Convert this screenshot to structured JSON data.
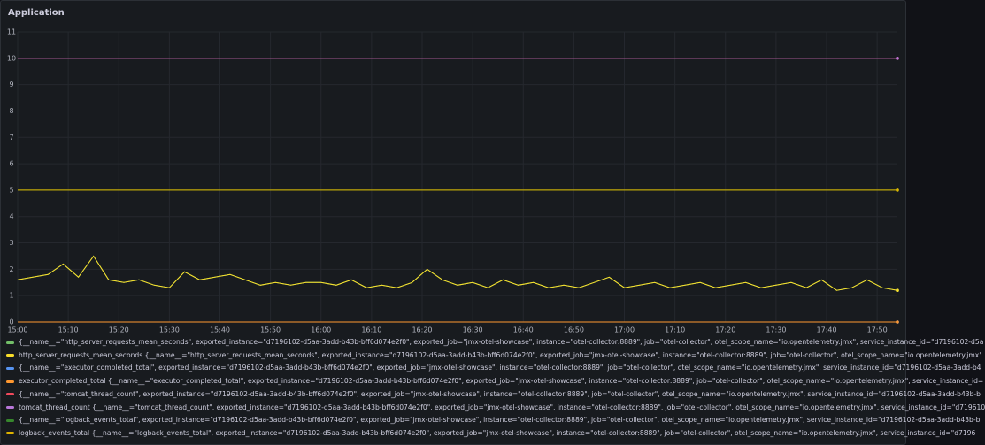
{
  "chart_data": {
    "type": "line",
    "title": "Application",
    "x": [
      "15:00",
      "15:03",
      "15:06",
      "15:09",
      "15:12",
      "15:15",
      "15:18",
      "15:21",
      "15:24",
      "15:27",
      "15:30",
      "15:33",
      "15:36",
      "15:39",
      "15:42",
      "15:45",
      "15:48",
      "15:51",
      "15:54",
      "15:57",
      "16:00",
      "16:03",
      "16:06",
      "16:09",
      "16:12",
      "16:15",
      "16:18",
      "16:21",
      "16:24",
      "16:27",
      "16:30",
      "16:33",
      "16:36",
      "16:39",
      "16:42",
      "16:45",
      "16:48",
      "16:51",
      "16:54",
      "16:57",
      "17:00",
      "17:03",
      "17:06",
      "17:09",
      "17:12",
      "17:15",
      "17:18",
      "17:21",
      "17:24",
      "17:27",
      "17:30",
      "17:33",
      "17:36",
      "17:39",
      "17:42",
      "17:45",
      "17:48",
      "17:51",
      "17:54"
    ],
    "xlim": [
      "15:00",
      "17:54"
    ],
    "xticks": [
      "15:00",
      "15:10",
      "15:20",
      "15:30",
      "15:40",
      "15:50",
      "16:00",
      "16:10",
      "16:20",
      "16:30",
      "16:40",
      "16:50",
      "17:00",
      "17:10",
      "17:20",
      "17:30",
      "17:40",
      "17:50"
    ],
    "ylim": [
      0,
      11
    ],
    "yticks": [
      0,
      1,
      2,
      3,
      4,
      5,
      6,
      7,
      8,
      9,
      10,
      11
    ],
    "grid": true,
    "series": [
      {
        "name": "{__name__=\"http_server_requests_mean_seconds\", exported_instance=\"d7196102-d5aa-3add-b43b-bff6d074e2f0\", exported_job=\"jmx-otel-showcase\", instance=\"otel-collector:8889\", job=\"otel-collector\", otel_scope_name=\"io.opentelemetry.jmx\", service_instance_id=\"d7196102-d5a",
        "color": "#73bf69",
        "values": [
          1.6,
          1.7,
          1.8,
          2.2,
          1.7,
          2.5,
          1.6,
          1.5,
          1.6,
          1.4,
          1.3,
          1.9,
          1.6,
          1.7,
          1.8,
          1.6,
          1.4,
          1.5,
          1.4,
          1.5,
          1.5,
          1.4,
          1.6,
          1.3,
          1.4,
          1.3,
          1.5,
          2.0,
          1.6,
          1.4,
          1.5,
          1.3,
          1.6,
          1.4,
          1.5,
          1.3,
          1.4,
          1.3,
          1.5,
          1.7,
          1.3,
          1.4,
          1.5,
          1.3,
          1.4,
          1.5,
          1.3,
          1.4,
          1.5,
          1.3,
          1.4,
          1.5,
          1.3,
          1.6,
          1.2,
          1.3,
          1.6,
          1.3,
          1.2
        ]
      },
      {
        "name": "http_server_requests_mean_seconds {__name__=\"http_server_requests_mean_seconds\", exported_instance=\"d7196102-d5aa-3add-b43b-bff6d074e2f0\", exported_job=\"jmx-otel-showcase\", instance=\"otel-collector:8889\", job=\"otel-collector\", otel_scope_name=\"io.opentelemetry.jmx'",
        "color": "#fade2a",
        "values": [
          1.6,
          1.7,
          1.8,
          2.2,
          1.7,
          2.5,
          1.6,
          1.5,
          1.6,
          1.4,
          1.3,
          1.9,
          1.6,
          1.7,
          1.8,
          1.6,
          1.4,
          1.5,
          1.4,
          1.5,
          1.5,
          1.4,
          1.6,
          1.3,
          1.4,
          1.3,
          1.5,
          2.0,
          1.6,
          1.4,
          1.5,
          1.3,
          1.6,
          1.4,
          1.5,
          1.3,
          1.4,
          1.3,
          1.5,
          1.7,
          1.3,
          1.4,
          1.5,
          1.3,
          1.4,
          1.5,
          1.3,
          1.4,
          1.5,
          1.3,
          1.4,
          1.5,
          1.3,
          1.6,
          1.2,
          1.3,
          1.6,
          1.3,
          1.2
        ]
      },
      {
        "name": "{__name__=\"executor_completed_total\", exported_instance=\"d7196102-d5aa-3add-b43b-bff6d074e2f0\", exported_job=\"jmx-otel-showcase\", instance=\"otel-collector:8889\", job=\"otel-collector\", otel_scope_name=\"io.opentelemetry.jmx\", service_instance_id=\"d7196102-d5aa-3add-b4",
        "color": "#5794f2",
        "values": [
          0,
          0,
          0,
          0,
          0,
          0,
          0,
          0,
          0,
          0,
          0,
          0,
          0,
          0,
          0,
          0,
          0,
          0,
          0,
          0,
          0,
          0,
          0,
          0,
          0,
          0,
          0,
          0,
          0,
          0,
          0,
          0,
          0,
          0,
          0,
          0,
          0,
          0,
          0,
          0,
          0,
          0,
          0,
          0,
          0,
          0,
          0,
          0,
          0,
          0,
          0,
          0,
          0,
          0,
          0,
          0,
          0,
          0,
          0
        ]
      },
      {
        "name": "executor_completed_total {__name__=\"executor_completed_total\", exported_instance=\"d7196102-d5aa-3add-b43b-bff6d074e2f0\", exported_job=\"jmx-otel-showcase\", instance=\"otel-collector:8889\", job=\"otel-collector\", otel_scope_name=\"io.opentelemetry.jmx\", service_instance_id=",
        "color": "#ff9830",
        "values": [
          0,
          0,
          0,
          0,
          0,
          0,
          0,
          0,
          0,
          0,
          0,
          0,
          0,
          0,
          0,
          0,
          0,
          0,
          0,
          0,
          0,
          0,
          0,
          0,
          0,
          0,
          0,
          0,
          0,
          0,
          0,
          0,
          0,
          0,
          0,
          0,
          0,
          0,
          0,
          0,
          0,
          0,
          0,
          0,
          0,
          0,
          0,
          0,
          0,
          0,
          0,
          0,
          0,
          0,
          0,
          0,
          0,
          0,
          0
        ]
      },
      {
        "name": "{__name__=\"tomcat_thread_count\", exported_instance=\"d7196102-d5aa-3add-b43b-bff6d074e2f0\", exported_job=\"jmx-otel-showcase\", instance=\"otel-collector:8889\", job=\"otel-collector\", otel_scope_name=\"io.opentelemetry.jmx\", service_instance_id=\"d7196102-d5aa-3add-b43b-b",
        "color": "#f2495c",
        "values": [
          10,
          10,
          10,
          10,
          10,
          10,
          10,
          10,
          10,
          10,
          10,
          10,
          10,
          10,
          10,
          10,
          10,
          10,
          10,
          10,
          10,
          10,
          10,
          10,
          10,
          10,
          10,
          10,
          10,
          10,
          10,
          10,
          10,
          10,
          10,
          10,
          10,
          10,
          10,
          10,
          10,
          10,
          10,
          10,
          10,
          10,
          10,
          10,
          10,
          10,
          10,
          10,
          10,
          10,
          10,
          10,
          10,
          10,
          10
        ]
      },
      {
        "name": "tomcat_thread_count {__name__=\"tomcat_thread_count\", exported_instance=\"d7196102-d5aa-3add-b43b-bff6d074e2f0\", exported_job=\"jmx-otel-showcase\", instance=\"otel-collector:8889\", job=\"otel-collector\", otel_scope_name=\"io.opentelemetry.jmx\", service_instance_id=\"d719610",
        "color": "#b877d9",
        "values": [
          10,
          10,
          10,
          10,
          10,
          10,
          10,
          10,
          10,
          10,
          10,
          10,
          10,
          10,
          10,
          10,
          10,
          10,
          10,
          10,
          10,
          10,
          10,
          10,
          10,
          10,
          10,
          10,
          10,
          10,
          10,
          10,
          10,
          10,
          10,
          10,
          10,
          10,
          10,
          10,
          10,
          10,
          10,
          10,
          10,
          10,
          10,
          10,
          10,
          10,
          10,
          10,
          10,
          10,
          10,
          10,
          10,
          10,
          10
        ]
      },
      {
        "name": "{__name__=\"logback_events_total\", exported_instance=\"d7196102-d5aa-3add-b43b-bff6d074e2f0\", exported_job=\"jmx-otel-showcase\", instance=\"otel-collector:8889\", job=\"otel-collector\", otel_scope_name=\"io.opentelemetry.jmx\", service_instance_id=\"d7196102-d5aa-3add-b43b-b",
        "color": "#37872d",
        "values": [
          5,
          5,
          5,
          5,
          5,
          5,
          5,
          5,
          5,
          5,
          5,
          5,
          5,
          5,
          5,
          5,
          5,
          5,
          5,
          5,
          5,
          5,
          5,
          5,
          5,
          5,
          5,
          5,
          5,
          5,
          5,
          5,
          5,
          5,
          5,
          5,
          5,
          5,
          5,
          5,
          5,
          5,
          5,
          5,
          5,
          5,
          5,
          5,
          5,
          5,
          5,
          5,
          5,
          5,
          5,
          5,
          5,
          5,
          5
        ]
      },
      {
        "name": "logback_events_total {__name__=\"logback_events_total\", exported_instance=\"d7196102-d5aa-3add-b43b-bff6d074e2f0\", exported_job=\"jmx-otel-showcase\", instance=\"otel-collector:8889\", job=\"otel-collector\", otel_scope_name=\"io.opentelemetry.jmx\", service_instance_id=\"d7196",
        "color": "#e0b400",
        "values": [
          5,
          5,
          5,
          5,
          5,
          5,
          5,
          5,
          5,
          5,
          5,
          5,
          5,
          5,
          5,
          5,
          5,
          5,
          5,
          5,
          5,
          5,
          5,
          5,
          5,
          5,
          5,
          5,
          5,
          5,
          5,
          5,
          5,
          5,
          5,
          5,
          5,
          5,
          5,
          5,
          5,
          5,
          5,
          5,
          5,
          5,
          5,
          5,
          5,
          5,
          5,
          5,
          5,
          5,
          5,
          5,
          5,
          5,
          5
        ]
      }
    ]
  }
}
